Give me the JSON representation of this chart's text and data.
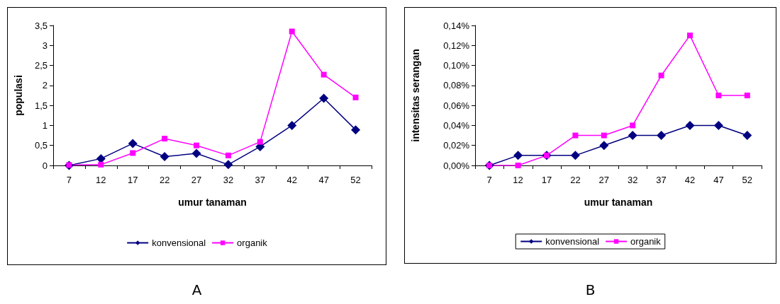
{
  "chart_data": [
    {
      "type": "line",
      "xlabel": "umur tanaman",
      "ylabel": "populasi",
      "categories": [
        "7",
        "12",
        "17",
        "22",
        "27",
        "32",
        "37",
        "42",
        "47",
        "52"
      ],
      "series": [
        {
          "name": "konvensional",
          "color": "#000080",
          "marker": "diamond",
          "values": [
            0,
            0.17,
            0.55,
            0.22,
            0.3,
            0.02,
            0.47,
            1.0,
            1.68,
            0.89
          ]
        },
        {
          "name": "organik",
          "color": "#ff00ff",
          "marker": "square",
          "values": [
            0.01,
            0.02,
            0.31,
            0.67,
            0.5,
            0.25,
            0.59,
            3.35,
            2.27,
            1.7
          ]
        }
      ],
      "ylim": [
        0,
        3.5
      ],
      "yticks": [
        0,
        {
          "value": 0.5,
          "label": "0,5"
        },
        1,
        {
          "value": 1.5,
          "label": "1,5"
        },
        2,
        {
          "value": 2.5,
          "label": "2,5"
        },
        3,
        {
          "value": 3.5,
          "label": "3,5"
        }
      ],
      "grid": false,
      "legend": "bottom",
      "annotations": [
        "A"
      ]
    },
    {
      "type": "line",
      "xlabel": "umur tanaman",
      "ylabel": "intensitas serangan",
      "categories": [
        "7",
        "12",
        "17",
        "22",
        "27",
        "32",
        "37",
        "42",
        "47",
        "52"
      ],
      "series": [
        {
          "name": "konvensional",
          "color": "#000080",
          "marker": "diamond",
          "values": [
            0,
            0.01,
            0.01,
            0.01,
            0.02,
            0.03,
            0.03,
            0.04,
            0.04,
            0.03
          ]
        },
        {
          "name": "organik",
          "color": "#ff00ff",
          "marker": "square",
          "values": [
            0,
            0,
            0.01,
            0.03,
            0.03,
            0.04,
            0.09,
            0.13,
            0.07,
            0.07
          ]
        }
      ],
      "ylim": [
        0,
        0.14
      ],
      "yticks": [
        {
          "value": 0,
          "label": "0,00%"
        },
        {
          "value": 0.02,
          "label": "0,02%"
        },
        {
          "value": 0.04,
          "label": "0,04%"
        },
        {
          "value": 0.06,
          "label": "0,06%"
        },
        {
          "value": 0.08,
          "label": "0,08%"
        },
        {
          "value": 0.1,
          "label": "0,10%"
        },
        {
          "value": 0.12,
          "label": "0,12%"
        },
        {
          "value": 0.14,
          "label": "0,14%"
        }
      ],
      "grid": false,
      "legend": "bottom",
      "annotations": [
        "B"
      ]
    }
  ]
}
